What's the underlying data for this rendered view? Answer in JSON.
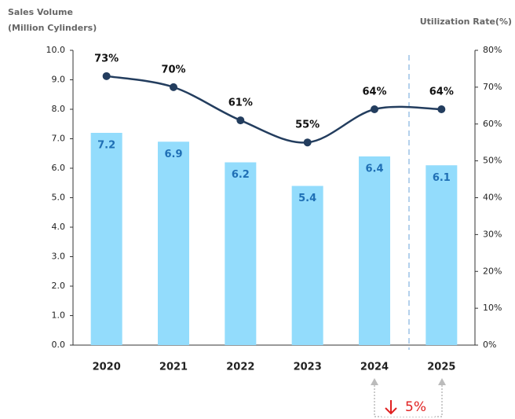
{
  "chart_data": {
    "type": "bar_line",
    "ylabel": [
      "Sales Volume",
      "(Million Cylinders)"
    ],
    "y2label": "Utilization Rate(%)",
    "categories": [
      "2020",
      "2021",
      "2022",
      "2023",
      "2024",
      "2025"
    ],
    "series": [
      {
        "type": "bar",
        "color": "#93dcfc",
        "label_color": "#1f6fb5",
        "values": [
          7.2,
          6.9,
          6.2,
          5.4,
          6.4,
          6.1
        ]
      },
      {
        "type": "line",
        "axis": "y2",
        "color": "#233d5e",
        "values": [
          73,
          70,
          61,
          55,
          64,
          64
        ],
        "value_labels": [
          "73%",
          "70%",
          "61%",
          "55%",
          "64%",
          "64%"
        ]
      }
    ],
    "ylim": [
      0,
      10
    ],
    "yticks": [
      {
        "value": 0,
        "label": "0.0"
      },
      {
        "value": 1,
        "label": "1.0"
      },
      {
        "value": 2,
        "label": "2.0"
      },
      {
        "value": 3,
        "label": "3.0"
      },
      {
        "value": 4,
        "label": "4.0"
      },
      {
        "value": 5,
        "label": "5.0"
      },
      {
        "value": 6,
        "label": "6.0"
      },
      {
        "value": 7,
        "label": "7.0"
      },
      {
        "value": 8,
        "label": "8.0"
      },
      {
        "value": 9,
        "label": "9.0"
      },
      {
        "value": 10,
        "label": "10.0"
      }
    ],
    "y2lim": [
      0,
      80
    ],
    "y2ticks": [
      {
        "value": 0,
        "label": "0%"
      },
      {
        "value": 10,
        "label": "10%"
      },
      {
        "value": 20,
        "label": "20%"
      },
      {
        "value": 30,
        "label": "30%"
      },
      {
        "value": 40,
        "label": "40%"
      },
      {
        "value": 50,
        "label": "50%"
      },
      {
        "value": 60,
        "label": "60%"
      },
      {
        "value": 70,
        "label": "70%"
      },
      {
        "value": 80,
        "label": "80%"
      }
    ],
    "annotation": "5%"
  }
}
